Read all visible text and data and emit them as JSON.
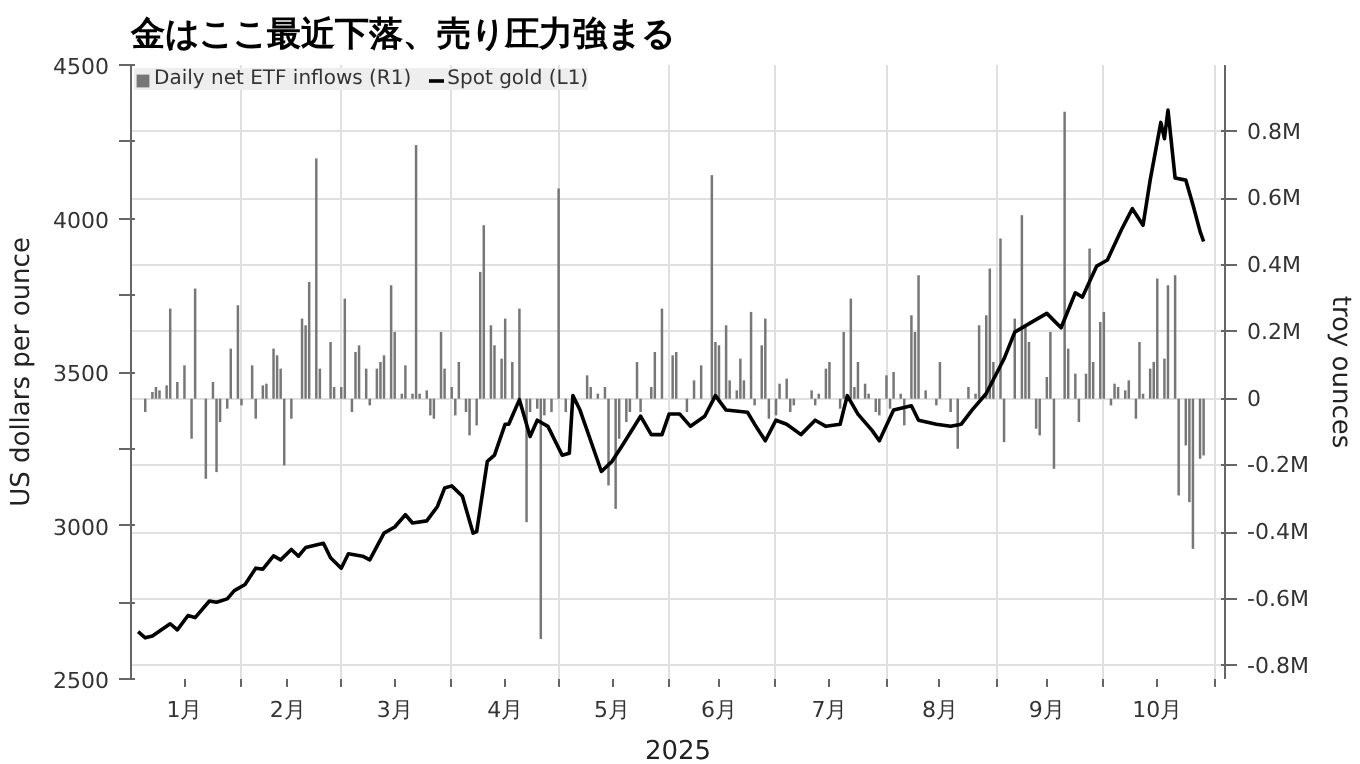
{
  "chart_data": {
    "type": "bar",
    "title": "金はここ最近下落、売り圧力強まる",
    "xlabel": "2025",
    "ylabel": "US dollars per ounce",
    "y2label": "troy ounces",
    "xlim": [
      "2025-01-01",
      "2025-11-04"
    ],
    "xticks": [
      {
        "value": "2025-01-16",
        "label": "1月"
      },
      {
        "value": "2025-02-01",
        "label": null
      },
      {
        "value": "2025-02-14",
        "label": "2月"
      },
      {
        "value": "2025-03-01",
        "label": null
      },
      {
        "value": "2025-03-16",
        "label": "3月"
      },
      {
        "value": "2025-04-01",
        "label": null
      },
      {
        "value": "2025-04-16",
        "label": "4月"
      },
      {
        "value": "2025-05-01",
        "label": null
      },
      {
        "value": "2025-05-16",
        "label": "5月"
      },
      {
        "value": "2025-06-01",
        "label": null
      },
      {
        "value": "2025-06-15",
        "label": "6月"
      },
      {
        "value": "2025-07-01",
        "label": null
      },
      {
        "value": "2025-07-16",
        "label": "7月"
      },
      {
        "value": "2025-08-01",
        "label": null
      },
      {
        "value": "2025-08-16",
        "label": "8月"
      },
      {
        "value": "2025-09-01",
        "label": null
      },
      {
        "value": "2025-09-15",
        "label": "9月"
      },
      {
        "value": "2025-10-01",
        "label": null
      },
      {
        "value": "2025-10-16",
        "label": "10月"
      },
      {
        "value": "2025-11-01",
        "label": null
      }
    ],
    "ylim": [
      2500,
      4500
    ],
    "yticks": [
      2500,
      {
        "value": 2750,
        "label": null
      },
      3000,
      {
        "value": 3250,
        "label": null
      },
      3500,
      {
        "value": 3750,
        "label": null
      },
      4000,
      {
        "value": 4250,
        "label": null
      },
      4500
    ],
    "y2lim": [
      -0.84,
      1.0
    ],
    "y2ticks": [
      {
        "value": -0.8,
        "label": "-0.8M"
      },
      {
        "value": -0.6,
        "label": "-0.6M"
      },
      {
        "value": -0.4,
        "label": "-0.4M"
      },
      {
        "value": -0.2,
        "label": "-0.2M"
      },
      0,
      {
        "value": 0.2,
        "label": "0.2M"
      },
      {
        "value": 0.4,
        "label": "0.4M"
      },
      {
        "value": 0.6,
        "label": "0.6M"
      },
      {
        "value": 0.8,
        "label": "0.8M"
      }
    ],
    "grid": true,
    "legend": "top left",
    "series": [
      {
        "name": "Daily net ETF inflows (R1)",
        "axis": "y2",
        "color": "#777777",
        "x": [
          "2025-01-05",
          "2025-01-07",
          "2025-01-08",
          "2025-01-09",
          "2025-01-11",
          "2025-01-12",
          "2025-01-14",
          "2025-01-16",
          "2025-01-18",
          "2025-01-19",
          "2025-01-22",
          "2025-01-24",
          "2025-01-25",
          "2025-01-26",
          "2025-01-28",
          "2025-01-29",
          "2025-01-31",
          "2025-02-01",
          "2025-02-04",
          "2025-02-05",
          "2025-02-07",
          "2025-02-08",
          "2025-02-10",
          "2025-02-11",
          "2025-02-12",
          "2025-02-13",
          "2025-02-15",
          "2025-02-18",
          "2025-02-19",
          "2025-02-20",
          "2025-02-22",
          "2025-02-23",
          "2025-02-26",
          "2025-02-27",
          "2025-03-01",
          "2025-03-02",
          "2025-03-04",
          "2025-03-05",
          "2025-03-06",
          "2025-03-08",
          "2025-03-09",
          "2025-03-11",
          "2025-03-12",
          "2025-03-13",
          "2025-03-15",
          "2025-03-16",
          "2025-03-18",
          "2025-03-19",
          "2025-03-21",
          "2025-03-22",
          "2025-03-23",
          "2025-03-25",
          "2025-03-26",
          "2025-03-27",
          "2025-03-29",
          "2025-03-30",
          "2025-04-01",
          "2025-04-02",
          "2025-04-03",
          "2025-04-05",
          "2025-04-06",
          "2025-04-08",
          "2025-04-09",
          "2025-04-10",
          "2025-04-12",
          "2025-04-13",
          "2025-04-15",
          "2025-04-16",
          "2025-04-18",
          "2025-04-20",
          "2025-04-22",
          "2025-04-23",
          "2025-04-25",
          "2025-04-26",
          "2025-04-27",
          "2025-04-29",
          "2025-05-01",
          "2025-05-03",
          "2025-05-05",
          "2025-05-09",
          "2025-05-10",
          "2025-05-12",
          "2025-05-14",
          "2025-05-15",
          "2025-05-17",
          "2025-05-18",
          "2025-05-20",
          "2025-05-21",
          "2025-05-23",
          "2025-05-24",
          "2025-05-27",
          "2025-05-28",
          "2025-05-30",
          "2025-06-02",
          "2025-06-03",
          "2025-06-06",
          "2025-06-08",
          "2025-06-10",
          "2025-06-13",
          "2025-06-14",
          "2025-06-15",
          "2025-06-17",
          "2025-06-18",
          "2025-06-20",
          "2025-06-21",
          "2025-06-22",
          "2025-06-24",
          "2025-06-25",
          "2025-06-27",
          "2025-06-28",
          "2025-06-29",
          "2025-07-01",
          "2025-07-02",
          "2025-07-04",
          "2025-07-05",
          "2025-07-06",
          "2025-07-11",
          "2025-07-12",
          "2025-07-13",
          "2025-07-15",
          "2025-07-16",
          "2025-07-19",
          "2025-07-20",
          "2025-07-22",
          "2025-07-23",
          "2025-07-24",
          "2025-07-26",
          "2025-07-27",
          "2025-07-29",
          "2025-07-30",
          "2025-08-01",
          "2025-08-02",
          "2025-08-03",
          "2025-08-05",
          "2025-08-06",
          "2025-08-08",
          "2025-08-09",
          "2025-08-10",
          "2025-08-12",
          "2025-08-15",
          "2025-08-16",
          "2025-08-19",
          "2025-08-21",
          "2025-08-24",
          "2025-08-26",
          "2025-08-27",
          "2025-08-29",
          "2025-08-30",
          "2025-08-31",
          "2025-09-02",
          "2025-09-03",
          "2025-09-06",
          "2025-09-08",
          "2025-09-09",
          "2025-09-10",
          "2025-09-12",
          "2025-09-13",
          "2025-09-15",
          "2025-09-16",
          "2025-09-17",
          "2025-09-20",
          "2025-09-21",
          "2025-09-23",
          "2025-09-24",
          "2025-09-26",
          "2025-09-27",
          "2025-09-28",
          "2025-09-30",
          "2025-10-01",
          "2025-10-03",
          "2025-10-04",
          "2025-10-05",
          "2025-10-07",
          "2025-10-08",
          "2025-10-10",
          "2025-10-11",
          "2025-10-12",
          "2025-10-14",
          "2025-10-15",
          "2025-10-16",
          "2025-10-18",
          "2025-10-19",
          "2025-10-21",
          "2025-10-22",
          "2025-10-24",
          "2025-10-25",
          "2025-10-26",
          "2025-10-28",
          "2025-10-29"
        ],
        "values": [
          -0.04,
          0.02,
          0.035,
          0.025,
          0.04,
          0.27,
          0.05,
          0.1,
          -0.12,
          0.33,
          -0.24,
          0.05,
          -0.22,
          -0.07,
          -0.03,
          0.15,
          0.28,
          -0.02,
          0.1,
          -0.06,
          0.04,
          0.045,
          0.15,
          0.13,
          0.09,
          -0.2,
          -0.06,
          0.24,
          0.22,
          0.35,
          0.72,
          0.09,
          0.17,
          0.035,
          0.035,
          0.3,
          -0.04,
          0.14,
          0.16,
          0.09,
          -0.02,
          0.09,
          0.11,
          0.13,
          0.34,
          0.2,
          0.015,
          0.1,
          0.015,
          0.76,
          0.015,
          0.025,
          -0.05,
          -0.06,
          0.2,
          0.09,
          0.035,
          -0.05,
          0.11,
          -0.04,
          -0.11,
          -0.08,
          0.38,
          0.52,
          0.22,
          0.16,
          0.12,
          0.24,
          0.11,
          0.27,
          -0.37,
          -0.04,
          -0.03,
          -0.72,
          -0.05,
          -0.04,
          0.63,
          -0.04,
          null,
          0.07,
          0.035,
          0.015,
          0.035,
          -0.26,
          -0.33,
          -0.12,
          -0.07,
          -0.04,
          0.11,
          -0.04,
          0.035,
          0.14,
          0.27,
          0.13,
          0.14,
          -0.04,
          0.055,
          0.1,
          0.67,
          0.17,
          0.16,
          0.22,
          0.055,
          0.025,
          0.12,
          0.055,
          0.26,
          -0.02,
          0.16,
          0.24,
          -0.06,
          -0.05,
          0.045,
          0.06,
          -0.04,
          -0.02,
          0.025,
          -0.02,
          0.015,
          0.09,
          0.11,
          -0.03,
          0.2,
          0.3,
          0.035,
          0.11,
          0.045,
          0.015,
          -0.04,
          -0.05,
          0.07,
          -0.03,
          0.08,
          0.015,
          -0.08,
          0.25,
          0.2,
          0.37,
          0.025,
          -0.02,
          0.11,
          -0.04,
          -0.15,
          0.035,
          0.015,
          0.22,
          0.25,
          0.39,
          0.11,
          0.48,
          -0.13,
          0.24,
          0.55,
          0.22,
          0.17,
          -0.09,
          -0.11,
          0.065,
          0.2,
          -0.21,
          0.86,
          0.15,
          0.075,
          -0.07,
          0.075,
          0.45,
          0.11,
          0.23,
          0.26,
          -0.02,
          0.045,
          0.035,
          0.025,
          0.055,
          -0.06,
          0.17,
          0.015,
          0.09,
          0.11,
          0.36,
          0.12,
          0.34,
          0.37,
          -0.29,
          -0.14,
          -0.31,
          -0.45,
          -0.18,
          -0.17
        ]
      },
      {
        "name": "Spot gold (L1)",
        "type": "line",
        "color": "#000000",
        "x": [
          "2025-01-03",
          "2025-01-05",
          "2025-01-07",
          "2025-01-12",
          "2025-01-14",
          "2025-01-17",
          "2025-01-19",
          "2025-01-23",
          "2025-01-25",
          "2025-01-28",
          "2025-01-30",
          "2025-02-02",
          "2025-02-05",
          "2025-02-07",
          "2025-02-10",
          "2025-02-12",
          "2025-02-15",
          "2025-02-17",
          "2025-02-19",
          "2025-02-24",
          "2025-02-26",
          "2025-03-01",
          "2025-03-03",
          "2025-03-07",
          "2025-03-09",
          "2025-03-13",
          "2025-03-16",
          "2025-03-19",
          "2025-03-21",
          "2025-03-25",
          "2025-03-28",
          "2025-03-30",
          "2025-04-01",
          "2025-04-04",
          "2025-04-07",
          "2025-04-08",
          "2025-04-11",
          "2025-04-13",
          "2025-04-16",
          "2025-04-17",
          "2025-04-20",
          "2025-04-23",
          "2025-04-25",
          "2025-04-28",
          "2025-05-02",
          "2025-05-04",
          "2025-05-05",
          "2025-05-07",
          "2025-05-10",
          "2025-05-13",
          "2025-05-16",
          "2025-05-19",
          "2025-05-24",
          "2025-05-27",
          "2025-05-30",
          "2025-06-01",
          "2025-06-04",
          "2025-06-07",
          "2025-06-11",
          "2025-06-14",
          "2025-06-17",
          "2025-06-23",
          "2025-06-25",
          "2025-06-28",
          "2025-07-01",
          "2025-07-04",
          "2025-07-08",
          "2025-07-12",
          "2025-07-15",
          "2025-07-19",
          "2025-07-21",
          "2025-07-24",
          "2025-07-28",
          "2025-07-30",
          "2025-08-03",
          "2025-08-08",
          "2025-08-10",
          "2025-08-15",
          "2025-08-19",
          "2025-08-22",
          "2025-08-25",
          "2025-08-29",
          "2025-09-03",
          "2025-09-06",
          "2025-09-11",
          "2025-09-15",
          "2025-09-19",
          "2025-09-23",
          "2025-09-25",
          "2025-09-29",
          "2025-10-02",
          "2025-10-06",
          "2025-10-09",
          "2025-10-12",
          "2025-10-14",
          "2025-10-17",
          "2025-10-18",
          "2025-10-19",
          "2025-10-21",
          "2025-10-24",
          "2025-10-26",
          "2025-10-28",
          "2025-10-29"
        ],
        "values": [
          2654,
          2634,
          2640,
          2680,
          2660,
          2707,
          2700,
          2754,
          2750,
          2761,
          2788,
          2808,
          2861,
          2858,
          2901,
          2888,
          2922,
          2900,
          2928,
          2942,
          2895,
          2861,
          2908,
          2900,
          2888,
          2975,
          2995,
          3035,
          3008,
          3015,
          3062,
          3122,
          3129,
          3095,
          2975,
          2980,
          3209,
          3229,
          3330,
          3330,
          3410,
          3290,
          3343,
          3323,
          3229,
          3235,
          3423,
          3376,
          3276,
          3176,
          3209,
          3263,
          3356,
          3296,
          3296,
          3363,
          3363,
          3323,
          3356,
          3423,
          3376,
          3369,
          3330,
          3276,
          3343,
          3330,
          3296,
          3343,
          3323,
          3330,
          3423,
          3363,
          3309,
          3276,
          3376,
          3390,
          3343,
          3330,
          3323,
          3330,
          3376,
          3430,
          3543,
          3630,
          3664,
          3691,
          3644,
          3758,
          3744,
          3845,
          3865,
          3965,
          4032,
          3978,
          4125,
          4313,
          4260,
          4353,
          4132,
          4125,
          4045,
          3958,
          3925
        ]
      }
    ]
  }
}
